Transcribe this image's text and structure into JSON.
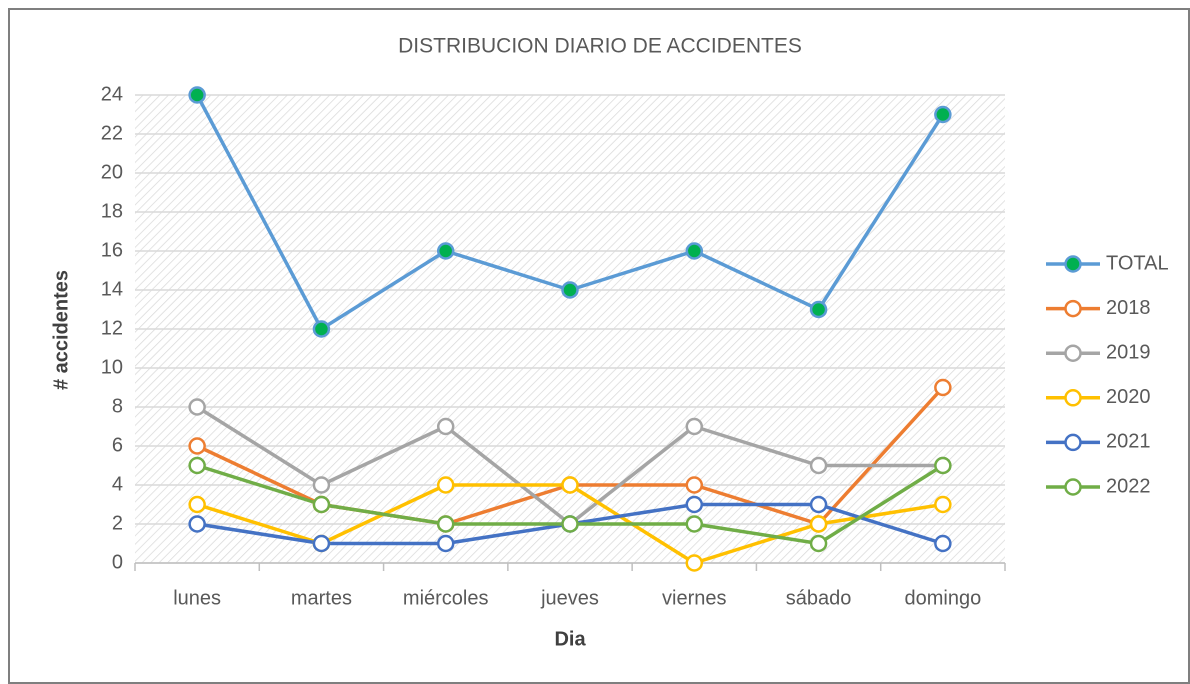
{
  "chart_data": {
    "type": "line",
    "title": "DISTRIBUCION DIARIO DE ACCIDENTES",
    "x_label": "Dia",
    "y_label": "# accidentes",
    "categories": [
      "lunes",
      "martes",
      "miércoles",
      "jueves",
      "viernes",
      "sábado",
      "domingo"
    ],
    "series": [
      {
        "name": "TOTAL",
        "color": "#5b9bd5",
        "marker_color": "#00b050",
        "values": [
          24,
          12,
          16,
          14,
          16,
          13,
          23
        ]
      },
      {
        "name": "2018",
        "color": "#ed7d31",
        "marker_color": "#ffffff",
        "values": [
          6,
          3,
          2,
          4,
          4,
          2,
          9
        ]
      },
      {
        "name": "2019",
        "color": "#a5a5a5",
        "marker_color": "#ffffff",
        "values": [
          8,
          4,
          7,
          2,
          7,
          5,
          5
        ]
      },
      {
        "name": "2020",
        "color": "#ffc000",
        "marker_color": "#ffffff",
        "values": [
          3,
          1,
          4,
          4,
          0,
          2,
          3
        ]
      },
      {
        "name": "2021",
        "color": "#4472c4",
        "marker_color": "#ffffff",
        "values": [
          2,
          1,
          1,
          2,
          3,
          3,
          1
        ]
      },
      {
        "name": "2022",
        "color": "#70ad47",
        "marker_color": "#ffffff",
        "values": [
          5,
          3,
          2,
          2,
          2,
          1,
          5
        ]
      }
    ],
    "ylim": [
      0,
      24
    ],
    "yticks": [
      0,
      2,
      4,
      6,
      8,
      10,
      12,
      14,
      16,
      18,
      20,
      22,
      24
    ],
    "grid": true,
    "legend": "right"
  }
}
